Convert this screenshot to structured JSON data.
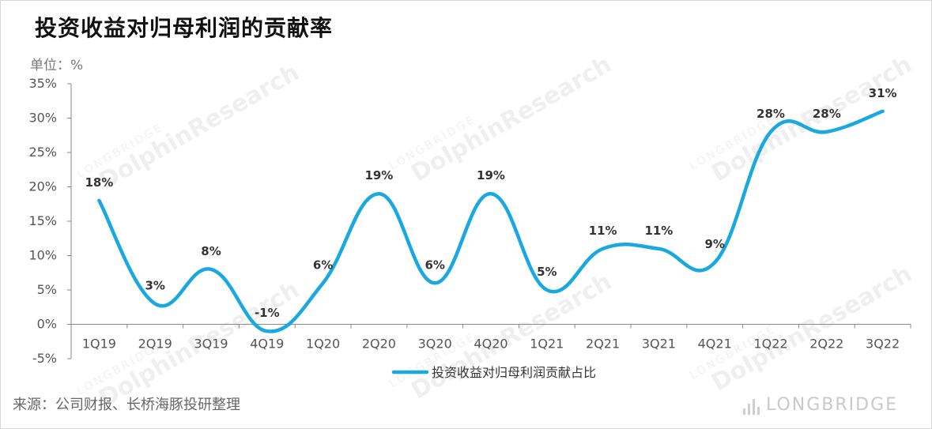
{
  "title": "投资收益对归母利润的贡献率",
  "unit_label": "单位：%",
  "source": "来源：公司财报、长桥海豚投研整理",
  "watermark": {
    "brand_small": "LONGBRIDGE",
    "brand_large": "DolphinResearch",
    "corner": "LONGBRIDGE"
  },
  "colors": {
    "line": "#1aa8e0",
    "axis": "#888888",
    "text": "#333333"
  },
  "chart_data": {
    "type": "line",
    "title": "投资收益对归母利润的贡献率",
    "xlabel": "",
    "ylabel": "",
    "categories": [
      "1Q19",
      "2Q19",
      "3Q19",
      "4Q19",
      "1Q20",
      "2Q20",
      "3Q20",
      "4Q20",
      "1Q21",
      "2Q21",
      "3Q21",
      "4Q21",
      "1Q22",
      "2Q22",
      "3Q22"
    ],
    "series": [
      {
        "name": "投资收益对归母利润贡献占比",
        "values": [
          18,
          3,
          8,
          -1,
          6,
          19,
          6,
          19,
          5,
          11,
          11,
          9,
          28,
          28,
          31
        ],
        "labels": [
          "18%",
          "3%",
          "8%",
          "-1%",
          "6%",
          "19%",
          "6%",
          "19%",
          "5%",
          "11%",
          "11%",
          "9%",
          "28%",
          "28%",
          "31%"
        ]
      }
    ],
    "yticks": [
      "-5%",
      "0%",
      "5%",
      "10%",
      "15%",
      "20%",
      "25%",
      "30%",
      "35%"
    ],
    "ylim": [
      -5,
      35
    ],
    "grid": false,
    "legend": "bottom",
    "smooth": true
  }
}
